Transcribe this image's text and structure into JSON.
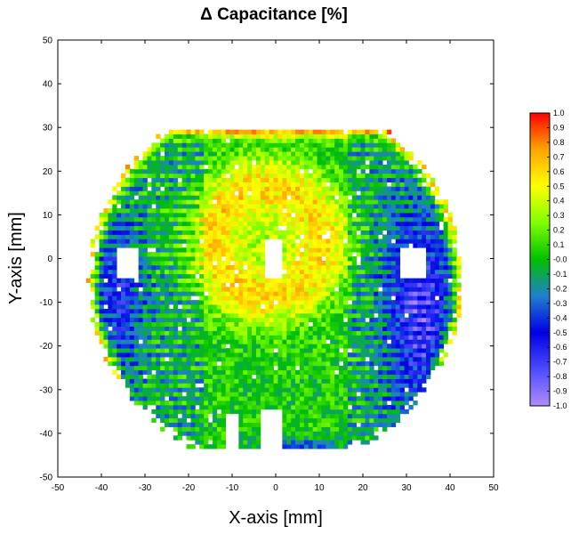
{
  "chart_data": {
    "type": "heatmap",
    "title": "Δ   Capacitance [%]",
    "xlabel": "X-axis [mm]",
    "ylabel": "Y-axis [mm]",
    "xlim": [
      -50,
      50
    ],
    "ylim": [
      -50,
      50
    ],
    "x_ticks": [
      -50,
      -40,
      -30,
      -20,
      -10,
      0,
      10,
      20,
      30,
      40,
      50
    ],
    "y_ticks": [
      50,
      40,
      30,
      20,
      10,
      0,
      -10,
      -20,
      -30,
      -40,
      -50
    ],
    "colorbar": {
      "min": -1.0,
      "max": 1.0,
      "labels": [
        "1.0",
        "0.9",
        "0.8",
        "0.7",
        "0.6",
        "0.5",
        "0.4",
        "0.3",
        "0.2",
        "0.1",
        "-0.0",
        "-0.1",
        "-0.2",
        "-0.3",
        "-0.4",
        "-0.5",
        "-0.6",
        "-0.7",
        "-0.8",
        "-0.9",
        "-1.0"
      ],
      "colors": [
        "#b08cff",
        "#4b4bff",
        "#0000e6",
        "#1f7fd0",
        "#00c000",
        "#7fff00",
        "#ffff00",
        "#ffa500",
        "#ff0000"
      ]
    },
    "region": {
      "description_values_mm": {
        "disk_center": [
          0,
          -5
        ],
        "disk_radius": 43,
        "top_chord_y": 29,
        "bottom_chord_y": -43,
        "grid_step": 1.0
      },
      "value_model": {
        "inner_ring_center": [
          -2,
          4
        ],
        "inner_ring_radius": 13,
        "inner_ring_peak": 0.5,
        "base_level": 0.0,
        "right_low_zone_center": [
          33,
          -12
        ],
        "right_low_zone_peak": -0.65,
        "edge_high_peak": 0.85
      },
      "holes": [
        {
          "x": [
            -36,
            -32
          ],
          "y": [
            -4,
            2
          ]
        },
        {
          "x": [
            29,
            34
          ],
          "y": [
            -4,
            2
          ]
        },
        {
          "x": [
            -2,
            1
          ],
          "y": [
            -4,
            4
          ]
        },
        {
          "x": [
            -3,
            1
          ],
          "y": [
            -43,
            -35
          ]
        },
        {
          "x": [
            -11,
            -9
          ],
          "y": [
            -43,
            -36
          ]
        }
      ]
    }
  }
}
